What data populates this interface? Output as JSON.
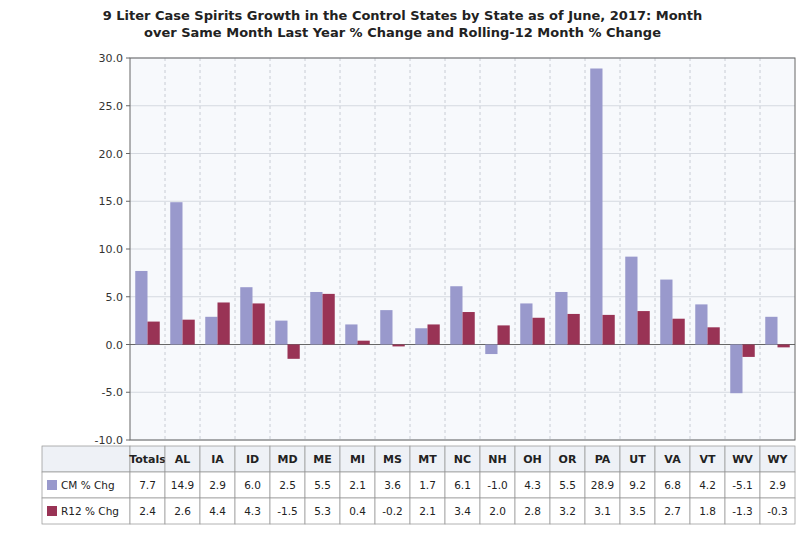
{
  "chart_data": {
    "type": "bar",
    "title": "9 Liter Case Spirits Growth in the Control States by State as of June, 2017: Month\nover Same Month Last Year % Change and Rolling-12 Month % Change",
    "categories": [
      "Totals",
      "AL",
      "IA",
      "ID",
      "MD",
      "ME",
      "MI",
      "MS",
      "MT",
      "NC",
      "NH",
      "OH",
      "OR",
      "PA",
      "UT",
      "VA",
      "VT",
      "WV",
      "WY"
    ],
    "series": [
      {
        "name": "CM % Chg",
        "color": "#9999cc",
        "values": [
          7.7,
          14.9,
          2.9,
          6.0,
          2.5,
          5.5,
          2.1,
          3.6,
          1.7,
          6.1,
          -1.0,
          4.3,
          5.5,
          28.9,
          9.2,
          6.8,
          4.2,
          -5.1,
          2.9
        ],
        "value_labels": [
          "7.7",
          "14.9",
          "2.9",
          "6.0",
          "2.5",
          "5.5",
          "2.1",
          "3.6",
          "1.7",
          "6.1",
          "-1.0",
          "4.3",
          "5.5",
          "28.9",
          "9.2",
          "6.8",
          "4.2",
          "-5.1",
          "2.9"
        ]
      },
      {
        "name": "R12 % Chg",
        "color": "#993355",
        "values": [
          2.4,
          2.6,
          4.4,
          4.3,
          -1.5,
          5.3,
          0.4,
          -0.2,
          2.1,
          3.4,
          2.0,
          2.8,
          3.2,
          3.1,
          3.5,
          2.7,
          1.8,
          -1.3,
          -0.3
        ],
        "value_labels": [
          "2.4",
          "2.6",
          "4.4",
          "4.3",
          "-1.5",
          "5.3",
          "0.4",
          "-0.2",
          "2.1",
          "3.4",
          "2.0",
          "2.8",
          "3.2",
          "3.1",
          "3.5",
          "2.7",
          "1.8",
          "-1.3",
          "-0.3"
        ]
      }
    ],
    "ylim": [
      -10.0,
      30.0
    ],
    "yticks": [
      {
        "value": -10.0,
        "label": "-10.0"
      },
      {
        "value": -5.0,
        "label": "-5.0"
      },
      {
        "value": 0.0,
        "label": "0.0"
      },
      {
        "value": 5.0,
        "label": "5.0"
      },
      {
        "value": 10.0,
        "label": "10.0"
      },
      {
        "value": 15.0,
        "label": "15.0"
      },
      {
        "value": 20.0,
        "label": "20.0"
      },
      {
        "value": 25.0,
        "label": "25.0"
      },
      {
        "value": 30.0,
        "label": "30.0"
      }
    ],
    "grid": true,
    "data_labels": true
  }
}
